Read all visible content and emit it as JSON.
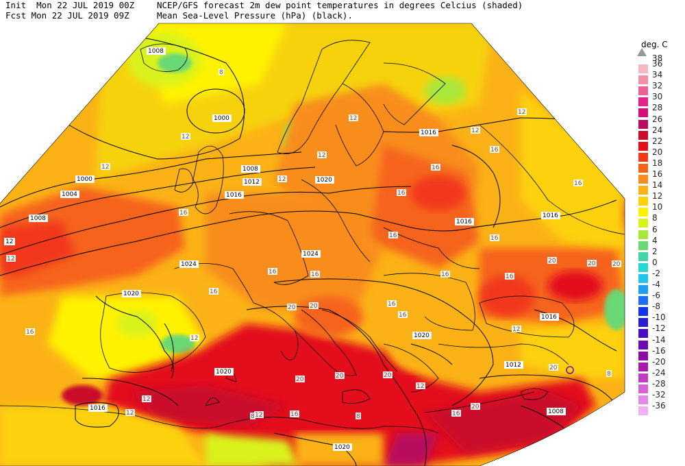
{
  "header": {
    "init_line": "Init  Mon 22 JUL 2019 00Z",
    "fcst_line": "Fcst Mon 22 JUL 2019 09Z",
    "title_line1": "NCEP/GFS forecast 2m dew point temperatures in degrees Celcius (shaded)",
    "title_line2": "Mean Sea-Level Pressure (hPa) (black)."
  },
  "legend": {
    "unit": "deg. C",
    "top_label": "38",
    "items": [
      {
        "label": "36",
        "color": "#f9b8c0"
      },
      {
        "label": "34",
        "color": "#f48fa8"
      },
      {
        "label": "32",
        "color": "#ee5f96"
      },
      {
        "label": "30",
        "color": "#e8208c"
      },
      {
        "label": "28",
        "color": "#d4107a"
      },
      {
        "label": "26",
        "color": "#b80e5e"
      },
      {
        "label": "24",
        "color": "#c90d2a"
      },
      {
        "label": "22",
        "color": "#e3101c"
      },
      {
        "label": "20",
        "color": "#f2391a"
      },
      {
        "label": "18",
        "color": "#f6641c"
      },
      {
        "label": "16",
        "color": "#f88d1e"
      },
      {
        "label": "14",
        "color": "#fbb216"
      },
      {
        "label": "12",
        "color": "#fdd10c"
      },
      {
        "label": "10",
        "color": "#fff200"
      },
      {
        "label": "8",
        "color": "#d9f21a"
      },
      {
        "label": "6",
        "color": "#a8e83a"
      },
      {
        "label": "4",
        "color": "#6ad874"
      },
      {
        "label": "2",
        "color": "#3ed6a8"
      },
      {
        "label": "0",
        "color": "#27d6d6"
      },
      {
        "label": "-2",
        "color": "#22c3ee"
      },
      {
        "label": "-4",
        "color": "#1f9ef2"
      },
      {
        "label": "-6",
        "color": "#1f6ef0"
      },
      {
        "label": "-8",
        "color": "#1236e6"
      },
      {
        "label": "-10",
        "color": "#2a1ad2"
      },
      {
        "label": "-12",
        "color": "#4a10c0"
      },
      {
        "label": "-14",
        "color": "#6a0cb2"
      },
      {
        "label": "-16",
        "color": "#8a0ca6"
      },
      {
        "label": "-20",
        "color": "#a81ca8"
      },
      {
        "label": "-24",
        "color": "#c23cc0"
      },
      {
        "label": "-28",
        "color": "#d562d6"
      },
      {
        "label": "-32",
        "color": "#e48ae6"
      },
      {
        "label": "-36",
        "color": "#f0b0f2"
      }
    ]
  },
  "isobar_labels": [
    {
      "text": "1008"
    },
    {
      "text": "1000"
    },
    {
      "text": "1000"
    },
    {
      "text": "1004"
    },
    {
      "text": "1008"
    },
    {
      "text": "1008"
    },
    {
      "text": "1012"
    },
    {
      "text": "1016"
    },
    {
      "text": "1020"
    },
    {
      "text": "1016"
    },
    {
      "text": "1016"
    },
    {
      "text": "1016"
    },
    {
      "text": "1024"
    },
    {
      "text": "1024"
    },
    {
      "text": "1020"
    },
    {
      "text": "1016"
    },
    {
      "text": "1020"
    },
    {
      "text": "1012"
    },
    {
      "text": "1020"
    },
    {
      "text": "1016"
    },
    {
      "text": "1008"
    },
    {
      "text": "1020"
    },
    {
      "text": "12"
    }
  ],
  "dewpoint_labels": [
    "8",
    "12",
    "12",
    "12",
    "12",
    "12",
    "12",
    "12",
    "16",
    "16",
    "16",
    "16",
    "16",
    "16",
    "16",
    "16",
    "16",
    "16",
    "16",
    "16",
    "16",
    "12",
    "16",
    "16",
    "20",
    "20",
    "20",
    "20",
    "20",
    "20",
    "20",
    "20",
    "12",
    "12",
    "8",
    "12",
    "12",
    "8",
    "16",
    "20",
    "8",
    "20",
    "16",
    "12",
    "12"
  ],
  "colors": {
    "land_base": "#f88d1e",
    "sea_warm": "#e3101c",
    "isobar": "#000000"
  }
}
